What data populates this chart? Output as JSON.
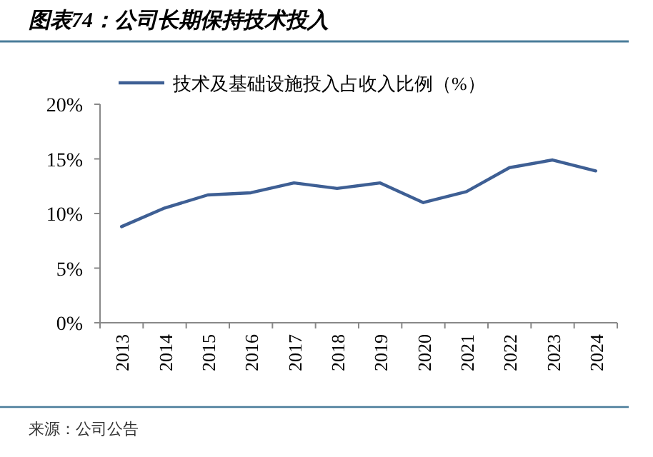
{
  "chart_data": {
    "type": "line",
    "title": "图表74：公司长期保持技术投入",
    "categories": [
      "2013",
      "2014",
      "2015",
      "2016",
      "2017",
      "2018",
      "2019",
      "2020",
      "2021",
      "2022",
      "2023",
      "2024"
    ],
    "series": [
      {
        "name": "技术及基础设施投入占收入比例（%）",
        "color": "#3e5f94",
        "values": [
          8.8,
          10.5,
          11.7,
          11.9,
          12.8,
          12.3,
          12.8,
          11.0,
          12.0,
          14.2,
          14.9,
          13.9
        ]
      }
    ],
    "ylim": [
      0,
      20
    ],
    "yticks": [
      {
        "value": 0,
        "label": "0%"
      },
      {
        "value": 5,
        "label": "5%"
      },
      {
        "value": 10,
        "label": "10%"
      },
      {
        "value": 15,
        "label": "15%"
      },
      {
        "value": 20,
        "label": "20%"
      }
    ],
    "grid": false,
    "legend": "top",
    "marker": "none",
    "line_style": "solid",
    "annotations": [
      "来源：公司公告"
    ]
  }
}
